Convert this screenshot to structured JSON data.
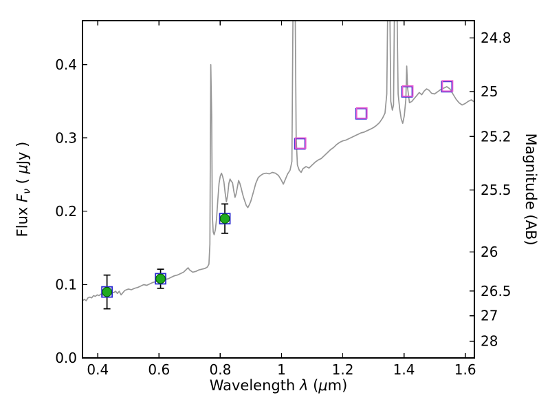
{
  "chart_data": {
    "type": "line",
    "title": "",
    "xlabel": "Wavelength λ (μm)",
    "ylabel_left": "Flux Fν ( μJy )",
    "ylabel_right": "Magnitude (AB)",
    "labels": {
      "xlabel_pre": "Wavelength ",
      "xlabel_symbol": "λ",
      "xlabel_unit_open": " (",
      "xlabel_mu": "μ",
      "xlabel_unit_close": "m)",
      "ylabel_pre": "Flux ",
      "ylabel_symbol": "F",
      "ylabel_sub": "ν",
      "ylabel_unit_open": " ( ",
      "ylabel_mu": "μ",
      "ylabel_unit_close": "Jy )",
      "ylabel_right": "Magnitude (AB)"
    },
    "xlim": [
      0.35,
      1.63
    ],
    "ylim_flux": [
      0.0,
      0.46
    ],
    "x_ticks": [
      0.4,
      0.6,
      0.8,
      1.0,
      1.2,
      1.4,
      1.6
    ],
    "x_tick_labels": [
      "0.4",
      "0.6",
      "0.8",
      "1",
      "1.2",
      "1.4",
      "1.6"
    ],
    "y_ticks_flux": [
      0.0,
      0.1,
      0.2,
      0.3,
      0.4
    ],
    "y_tick_labels_flux": [
      "0.0",
      "0.1",
      "0.2",
      "0.3",
      "0.4"
    ],
    "y_ticks_magnitude": [
      24.8,
      25,
      25.2,
      25.5,
      26,
      26.5,
      27,
      28
    ],
    "y_tick_labels_magnitude": [
      "24.8",
      "25",
      "25.2",
      "25.5",
      "26",
      "26.5",
      "27",
      "28"
    ],
    "magnitude_zero_point_ab": 23.9,
    "grid": false,
    "legend": "none",
    "colors": {
      "spectrum": "#969696",
      "circle_fill": "#1faa1f",
      "circle_edge": "#005500",
      "blue_square": "#2a2ad0",
      "magenta_square": "#e85ad0",
      "errorbar": "#000000",
      "frame": "#000000"
    },
    "spectrum_points": [
      [
        0.35,
        0.078
      ],
      [
        0.356,
        0.08
      ],
      [
        0.362,
        0.078
      ],
      [
        0.368,
        0.082
      ],
      [
        0.374,
        0.083
      ],
      [
        0.38,
        0.082
      ],
      [
        0.386,
        0.085
      ],
      [
        0.392,
        0.084
      ],
      [
        0.398,
        0.086
      ],
      [
        0.404,
        0.085
      ],
      [
        0.41,
        0.087
      ],
      [
        0.416,
        0.085
      ],
      [
        0.422,
        0.088
      ],
      [
        0.428,
        0.087
      ],
      [
        0.434,
        0.089
      ],
      [
        0.44,
        0.088
      ],
      [
        0.446,
        0.09
      ],
      [
        0.452,
        0.089
      ],
      [
        0.458,
        0.091
      ],
      [
        0.464,
        0.088
      ],
      [
        0.47,
        0.091
      ],
      [
        0.476,
        0.086
      ],
      [
        0.482,
        0.089
      ],
      [
        0.488,
        0.092
      ],
      [
        0.494,
        0.093
      ],
      [
        0.5,
        0.094
      ],
      [
        0.51,
        0.093
      ],
      [
        0.52,
        0.095
      ],
      [
        0.53,
        0.096
      ],
      [
        0.54,
        0.098
      ],
      [
        0.55,
        0.1
      ],
      [
        0.56,
        0.099
      ],
      [
        0.57,
        0.101
      ],
      [
        0.58,
        0.103
      ],
      [
        0.59,
        0.104
      ],
      [
        0.6,
        0.105
      ],
      [
        0.61,
        0.107
      ],
      [
        0.62,
        0.107
      ],
      [
        0.63,
        0.108
      ],
      [
        0.64,
        0.11
      ],
      [
        0.65,
        0.112
      ],
      [
        0.66,
        0.113
      ],
      [
        0.67,
        0.115
      ],
      [
        0.68,
        0.117
      ],
      [
        0.69,
        0.121
      ],
      [
        0.695,
        0.123
      ],
      [
        0.7,
        0.12
      ],
      [
        0.71,
        0.117
      ],
      [
        0.72,
        0.118
      ],
      [
        0.73,
        0.12
      ],
      [
        0.74,
        0.121
      ],
      [
        0.75,
        0.122
      ],
      [
        0.758,
        0.124
      ],
      [
        0.763,
        0.128
      ],
      [
        0.766,
        0.155
      ],
      [
        0.769,
        0.4
      ],
      [
        0.772,
        0.33
      ],
      [
        0.774,
        0.195
      ],
      [
        0.777,
        0.172
      ],
      [
        0.78,
        0.168
      ],
      [
        0.784,
        0.175
      ],
      [
        0.788,
        0.19
      ],
      [
        0.792,
        0.215
      ],
      [
        0.796,
        0.238
      ],
      [
        0.8,
        0.248
      ],
      [
        0.804,
        0.252
      ],
      [
        0.808,
        0.247
      ],
      [
        0.812,
        0.24
      ],
      [
        0.816,
        0.225
      ],
      [
        0.82,
        0.213
      ],
      [
        0.824,
        0.222
      ],
      [
        0.828,
        0.238
      ],
      [
        0.832,
        0.244
      ],
      [
        0.836,
        0.241
      ],
      [
        0.84,
        0.239
      ],
      [
        0.844,
        0.228
      ],
      [
        0.848,
        0.219
      ],
      [
        0.852,
        0.224
      ],
      [
        0.856,
        0.233
      ],
      [
        0.86,
        0.242
      ],
      [
        0.864,
        0.238
      ],
      [
        0.868,
        0.232
      ],
      [
        0.872,
        0.225
      ],
      [
        0.876,
        0.219
      ],
      [
        0.88,
        0.214
      ],
      [
        0.885,
        0.208
      ],
      [
        0.89,
        0.205
      ],
      [
        0.895,
        0.209
      ],
      [
        0.9,
        0.214
      ],
      [
        0.908,
        0.226
      ],
      [
        0.916,
        0.238
      ],
      [
        0.924,
        0.246
      ],
      [
        0.932,
        0.249
      ],
      [
        0.94,
        0.251
      ],
      [
        0.95,
        0.252
      ],
      [
        0.96,
        0.251
      ],
      [
        0.97,
        0.253
      ],
      [
        0.98,
        0.252
      ],
      [
        0.99,
        0.249
      ],
      [
        1.0,
        0.242
      ],
      [
        1.006,
        0.237
      ],
      [
        1.012,
        0.243
      ],
      [
        1.02,
        0.251
      ],
      [
        1.028,
        0.256
      ],
      [
        1.034,
        0.268
      ],
      [
        1.038,
        0.5
      ],
      [
        1.044,
        0.52
      ],
      [
        1.048,
        0.3
      ],
      [
        1.052,
        0.263
      ],
      [
        1.058,
        0.256
      ],
      [
        1.064,
        0.253
      ],
      [
        1.07,
        0.258
      ],
      [
        1.08,
        0.261
      ],
      [
        1.09,
        0.259
      ],
      [
        1.1,
        0.263
      ],
      [
        1.11,
        0.267
      ],
      [
        1.12,
        0.27
      ],
      [
        1.13,
        0.272
      ],
      [
        1.14,
        0.276
      ],
      [
        1.15,
        0.28
      ],
      [
        1.16,
        0.284
      ],
      [
        1.17,
        0.287
      ],
      [
        1.18,
        0.291
      ],
      [
        1.19,
        0.294
      ],
      [
        1.2,
        0.296
      ],
      [
        1.21,
        0.297
      ],
      [
        1.22,
        0.299
      ],
      [
        1.23,
        0.301
      ],
      [
        1.24,
        0.303
      ],
      [
        1.25,
        0.305
      ],
      [
        1.26,
        0.307
      ],
      [
        1.27,
        0.308
      ],
      [
        1.28,
        0.31
      ],
      [
        1.29,
        0.312
      ],
      [
        1.3,
        0.314
      ],
      [
        1.31,
        0.317
      ],
      [
        1.32,
        0.321
      ],
      [
        1.33,
        0.327
      ],
      [
        1.338,
        0.334
      ],
      [
        1.344,
        0.36
      ],
      [
        1.348,
        0.52
      ],
      [
        1.353,
        0.52
      ],
      [
        1.357,
        0.35
      ],
      [
        1.362,
        0.338
      ],
      [
        1.366,
        0.345
      ],
      [
        1.37,
        0.52
      ],
      [
        1.376,
        0.52
      ],
      [
        1.381,
        0.36
      ],
      [
        1.386,
        0.34
      ],
      [
        1.391,
        0.326
      ],
      [
        1.396,
        0.32
      ],
      [
        1.401,
        0.33
      ],
      [
        1.406,
        0.352
      ],
      [
        1.409,
        0.398
      ],
      [
        1.412,
        0.368
      ],
      [
        1.418,
        0.348
      ],
      [
        1.426,
        0.35
      ],
      [
        1.434,
        0.354
      ],
      [
        1.442,
        0.358
      ],
      [
        1.45,
        0.362
      ],
      [
        1.458,
        0.359
      ],
      [
        1.466,
        0.364
      ],
      [
        1.474,
        0.367
      ],
      [
        1.482,
        0.365
      ],
      [
        1.49,
        0.361
      ],
      [
        1.5,
        0.36
      ],
      [
        1.51,
        0.363
      ],
      [
        1.52,
        0.366
      ],
      [
        1.53,
        0.368
      ],
      [
        1.54,
        0.37
      ],
      [
        1.55,
        0.367
      ],
      [
        1.56,
        0.36
      ],
      [
        1.57,
        0.353
      ],
      [
        1.58,
        0.348
      ],
      [
        1.59,
        0.345
      ],
      [
        1.6,
        0.347
      ],
      [
        1.61,
        0.35
      ],
      [
        1.62,
        0.352
      ],
      [
        1.63,
        0.349
      ]
    ],
    "photometry_detected": [
      {
        "x": 0.43,
        "y": 0.09,
        "yerr": 0.023
      },
      {
        "x": 0.605,
        "y": 0.108,
        "yerr": 0.013
      },
      {
        "x": 0.815,
        "y": 0.19,
        "yerr": 0.02
      }
    ],
    "photometry_model_squares": [
      {
        "x": 0.43,
        "y": 0.09
      },
      {
        "x": 0.605,
        "y": 0.108
      },
      {
        "x": 0.815,
        "y": 0.19
      },
      {
        "x": 1.06,
        "y": 0.292
      },
      {
        "x": 1.26,
        "y": 0.333
      },
      {
        "x": 1.41,
        "y": 0.363
      },
      {
        "x": 1.54,
        "y": 0.37
      }
    ],
    "photometry_predicted_squares": [
      {
        "x": 1.06,
        "y": 0.292
      },
      {
        "x": 1.26,
        "y": 0.333
      },
      {
        "x": 1.41,
        "y": 0.363
      },
      {
        "x": 1.54,
        "y": 0.37
      }
    ]
  }
}
